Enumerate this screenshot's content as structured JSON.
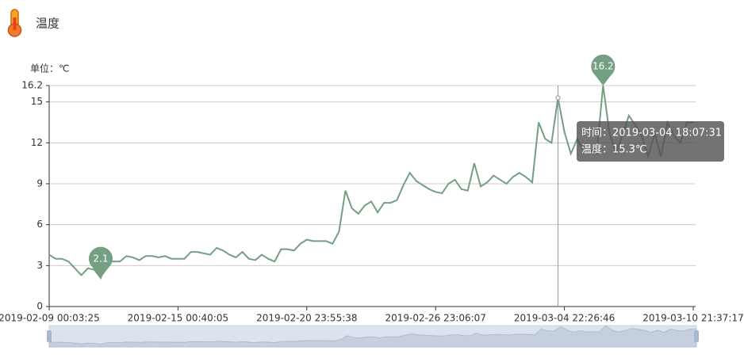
{
  "header": {
    "title": "温度"
  },
  "chart_data": {
    "type": "line",
    "y_axis_label": "单位：℃",
    "color": "#749f83",
    "categories": [
      "2019-02-09 00:03:25",
      null,
      null,
      null,
      null,
      null,
      null,
      null,
      null,
      null,
      null,
      null,
      null,
      null,
      null,
      null,
      null,
      null,
      null,
      null,
      "2019-02-15 00:40:05",
      null,
      null,
      null,
      null,
      null,
      null,
      null,
      null,
      null,
      null,
      null,
      null,
      null,
      null,
      null,
      null,
      null,
      null,
      null,
      "2019-02-20 23:55:38",
      null,
      null,
      null,
      null,
      null,
      null,
      null,
      null,
      null,
      null,
      null,
      null,
      null,
      null,
      null,
      null,
      null,
      null,
      null,
      "2019-02-26 23:06:07",
      null,
      null,
      null,
      null,
      null,
      null,
      null,
      null,
      null,
      null,
      null,
      null,
      null,
      null,
      null,
      null,
      null,
      null,
      null,
      "2019-03-04 22:26:46",
      null,
      null,
      null,
      null,
      null,
      null,
      null,
      null,
      null,
      null,
      null,
      null,
      null,
      null,
      null,
      null,
      null,
      null,
      null,
      "2019-03-10 21:37:17"
    ],
    "values": [
      3.8,
      3.5,
      3.5,
      3.3,
      2.8,
      2.3,
      2.8,
      2.7,
      2.1,
      3.3,
      3.3,
      3.3,
      3.7,
      3.6,
      3.4,
      3.7,
      3.7,
      3.6,
      3.7,
      3.5,
      3.5,
      3.5,
      4.0,
      4.0,
      3.9,
      3.8,
      4.3,
      4.1,
      3.8,
      3.6,
      4.0,
      3.5,
      3.4,
      3.8,
      3.5,
      3.3,
      4.2,
      4.2,
      4.1,
      4.6,
      4.9,
      4.8,
      4.8,
      4.8,
      4.6,
      5.5,
      8.5,
      7.2,
      6.8,
      7.4,
      7.7,
      6.9,
      7.6,
      7.6,
      7.8,
      8.9,
      9.8,
      9.2,
      8.9,
      8.6,
      8.4,
      8.3,
      9.0,
      9.3,
      8.6,
      8.5,
      10.5,
      8.8,
      9.1,
      9.6,
      9.3,
      9.0,
      9.5,
      9.8,
      9.5,
      9.1,
      13.5,
      12.3,
      12.0,
      15.3,
      12.8,
      11.2,
      12.3,
      11.3,
      11.5,
      11.2,
      16.2,
      12.7,
      11.3,
      12.5,
      14.0,
      13.3,
      12.5,
      11.0,
      12.7,
      11.0,
      13.5,
      12.5,
      12.0,
      13.5,
      13.5
    ],
    "ylim": [
      0,
      16.2
    ],
    "yticks": [
      0,
      3,
      6,
      9,
      12,
      15,
      16.2
    ],
    "grid": true,
    "mark_points": [
      "max",
      "min"
    ],
    "tooltip": {
      "lines": [
        "时间：2019-03-04 18:07:31",
        "温度：15.3℃"
      ]
    }
  }
}
